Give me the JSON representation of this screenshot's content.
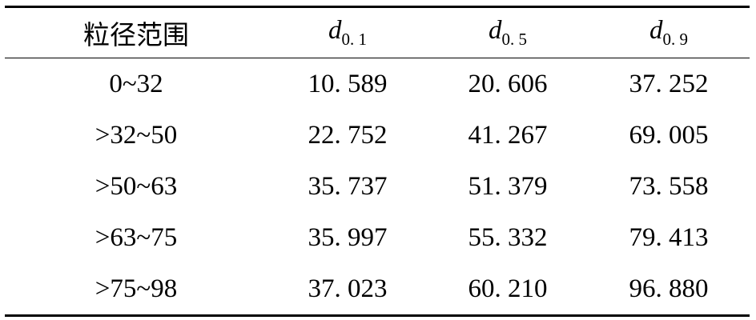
{
  "table": {
    "header": [
      {
        "text": "粒径范围"
      },
      {
        "main": "d",
        "sub": "0. 1"
      },
      {
        "main": "d",
        "sub": "0. 5"
      },
      {
        "main": "d",
        "sub": "0. 9"
      }
    ],
    "rows": [
      [
        "0~32",
        "10. 589",
        "20. 606",
        "37. 252"
      ],
      [
        ">32~50",
        "22. 752",
        "41. 267",
        "69. 005"
      ],
      [
        ">50~63",
        "35. 737",
        "51. 379",
        "73. 558"
      ],
      [
        ">63~75",
        "35. 997",
        "55. 332",
        "79. 413"
      ],
      [
        ">75~98",
        "37. 023",
        "60. 210",
        "96. 880"
      ]
    ]
  }
}
